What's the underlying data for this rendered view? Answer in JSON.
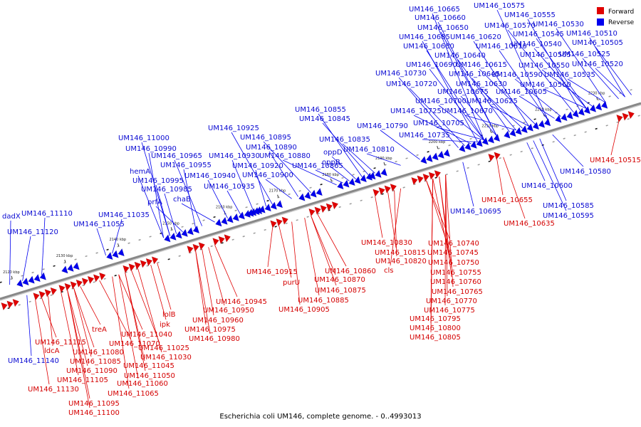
{
  "caption": "Escherichia coli UM146, complete genome. - 0..4993013",
  "legend": [
    {
      "label": "Forward",
      "color": "#e00000"
    },
    {
      "label": "Reverse",
      "color": "#0000ee"
    }
  ],
  "colors": {
    "forward": "#e00000",
    "reverse": "#0000ee",
    "forward_label": "#d40000",
    "reverse_label": "#0a0ad2",
    "backbone": "#888888"
  },
  "ticks": [
    "2230 kbp",
    "2220 kbp",
    "2210 kbp",
    "2200 kbp",
    "2190 kbp",
    "2180 kbp",
    "2170 kbp",
    "2160 kbp",
    "2150 kbp",
    "2140 kbp",
    "2130 kbp",
    "2120 kbp"
  ],
  "reverse_labels": [
    "UM146_10575",
    "UM146_10665",
    "UM146_10555",
    "UM146_10660",
    "UM146_10570",
    "UM146_10530",
    "UM146_10650",
    "UM146_10545",
    "UM146_10510",
    "UM146_10685",
    "UM146_10620",
    "UM146_10540",
    "UM146_10505",
    "UM146_10680",
    "UM146_10610",
    "UM146_10565",
    "UM146_10525",
    "UM146_10640",
    "UM146_10690",
    "UM146_10615",
    "UM146_10550",
    "UM146_10520",
    "UM146_10730",
    "UM146_10645",
    "UM146_10590",
    "UM146_10535",
    "UM146_10720",
    "UM146_10630",
    "UM146_10560",
    "UM146_10675",
    "UM146_10605",
    "UM146_10700",
    "UM146_10625",
    "UM146_10855",
    "UM146_10725",
    "UM146_10670",
    "UM146_10845",
    "UM146_10705",
    "UM146_10925",
    "UM146_10790",
    "UM146_10735",
    "UM146_10895",
    "UM146_10835",
    "UM146_11000",
    "UM146_10890",
    "UM146_10810",
    "UM146_10990",
    "UM146_10965",
    "UM146_10930",
    "UM146_10880",
    "oppD",
    "UM146_10955",
    "UM146_10920",
    "oppB",
    "hemA",
    "UM146_10940",
    "UM146_10900",
    "UM146_10865",
    "UM146_10995",
    "UM146_10935",
    "UM146_10985",
    "chaB",
    "prfA",
    "dadX",
    "UM146_11110",
    "UM146_11035",
    "UM146_11055",
    "UM146_11120",
    "UM146_11140",
    "UM146_10580",
    "UM146_10600",
    "UM146_10695",
    "UM146_10585",
    "UM146_10595"
  ],
  "forward_labels": [
    "UM146_10515",
    "UM146_10655",
    "UM146_10635",
    "UM146_10740",
    "UM146_10830",
    "UM146_10745",
    "UM146_10815",
    "UM146_10750",
    "UM146_10820",
    "cls",
    "UM146_10755",
    "UM146_10760",
    "UM146_10765",
    "UM146_10770",
    "UM146_10775",
    "UM146_10795",
    "UM146_10800",
    "UM146_10805",
    "UM146_10915",
    "UM146_10860",
    "purU",
    "UM146_10870",
    "UM146_10875",
    "UM146_10885",
    "UM146_10905",
    "UM146_10945",
    "UM146_10950",
    "UM146_10960",
    "UM146_10975",
    "UM146_10980",
    "lolB",
    "ipk",
    "treA",
    "UM146_11040",
    "UM146_11115",
    "UM146_11070",
    "UM146_11025",
    "ldcA",
    "UM146_11080",
    "UM146_11030",
    "UM146_11085",
    "UM146_11045",
    "UM146_11090",
    "UM146_11050",
    "UM146_11105",
    "UM146_11060",
    "UM146_11130",
    "UM146_11065",
    "UM146_11095",
    "UM146_11100"
  ]
}
